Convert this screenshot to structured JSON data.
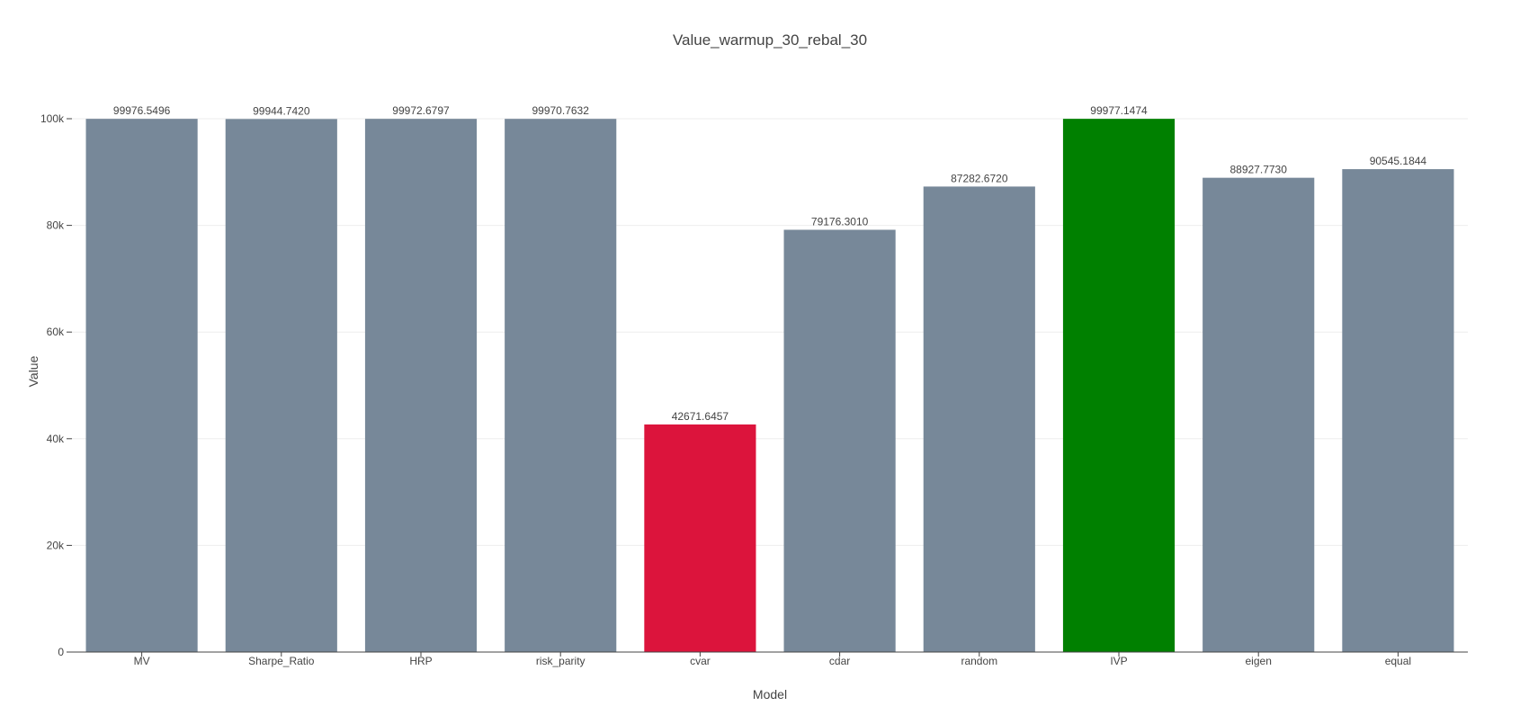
{
  "chart_data": {
    "type": "bar",
    "title": "Value_warmup_30_rebal_30",
    "xlabel": "Model",
    "ylabel": "Value",
    "categories": [
      "MV",
      "Sharpe_Ratio",
      "HRP",
      "risk_parity",
      "cvar",
      "cdar",
      "random",
      "IVP",
      "eigen",
      "equal"
    ],
    "values": [
      99976.5496,
      99944.742,
      99972.6797,
      99970.7632,
      42671.6457,
      79176.301,
      87282.672,
      99977.1474,
      88927.773,
      90545.1844
    ],
    "data_labels": [
      "99976.5496",
      "99944.7420",
      "99972.6797",
      "99970.7632",
      "42671.6457",
      "79176.3010",
      "87282.6720",
      "99977.1474",
      "88927.7730",
      "90545.1844"
    ],
    "bar_colors": [
      "#778899",
      "#778899",
      "#778899",
      "#778899",
      "#DC143C",
      "#778899",
      "#778899",
      "#008000",
      "#778899",
      "#778899"
    ],
    "ylim": [
      0,
      100000
    ],
    "yticks": [
      0,
      20000,
      40000,
      60000,
      80000,
      100000
    ],
    "ytick_labels": [
      "0",
      "20k",
      "40k",
      "60k",
      "80k",
      "100k"
    ],
    "grid": true
  }
}
